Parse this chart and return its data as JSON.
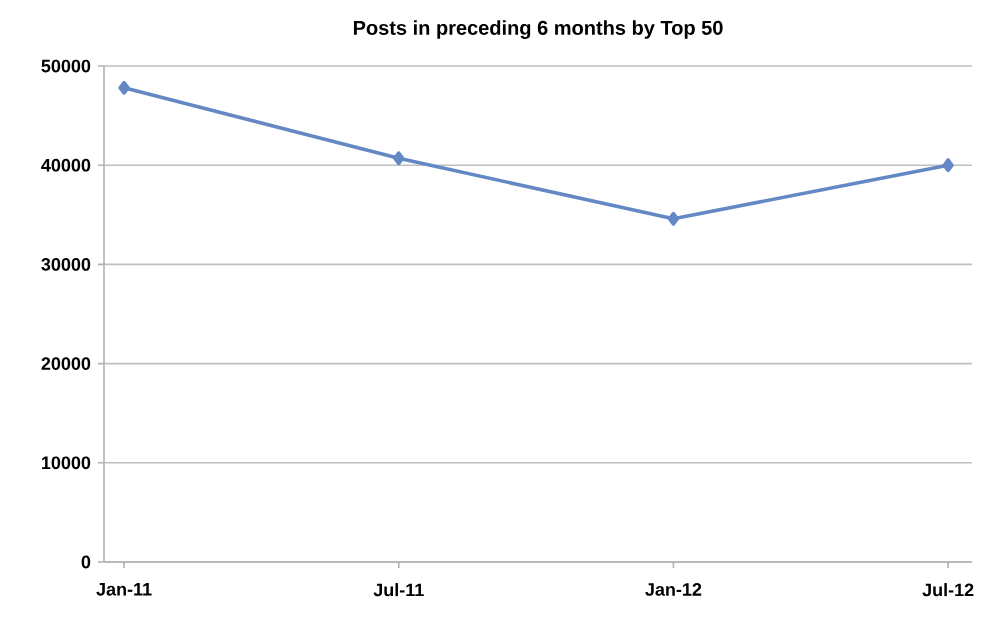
{
  "chart_data": {
    "type": "line",
    "title": "Posts in preceding 6 months by Top 50",
    "categories": [
      "Jan-11",
      "Jul-11",
      "Jan-12",
      "Jul-12"
    ],
    "series": [
      {
        "color": "#6388c4",
        "values": [
          47800,
          40700,
          34600,
          40000
        ]
      }
    ],
    "ylim": [
      0,
      50000
    ],
    "yticks": [
      0,
      10000,
      20000,
      30000,
      40000,
      50000
    ],
    "grid": "y",
    "marker": "diamond",
    "line_style": "solid"
  }
}
